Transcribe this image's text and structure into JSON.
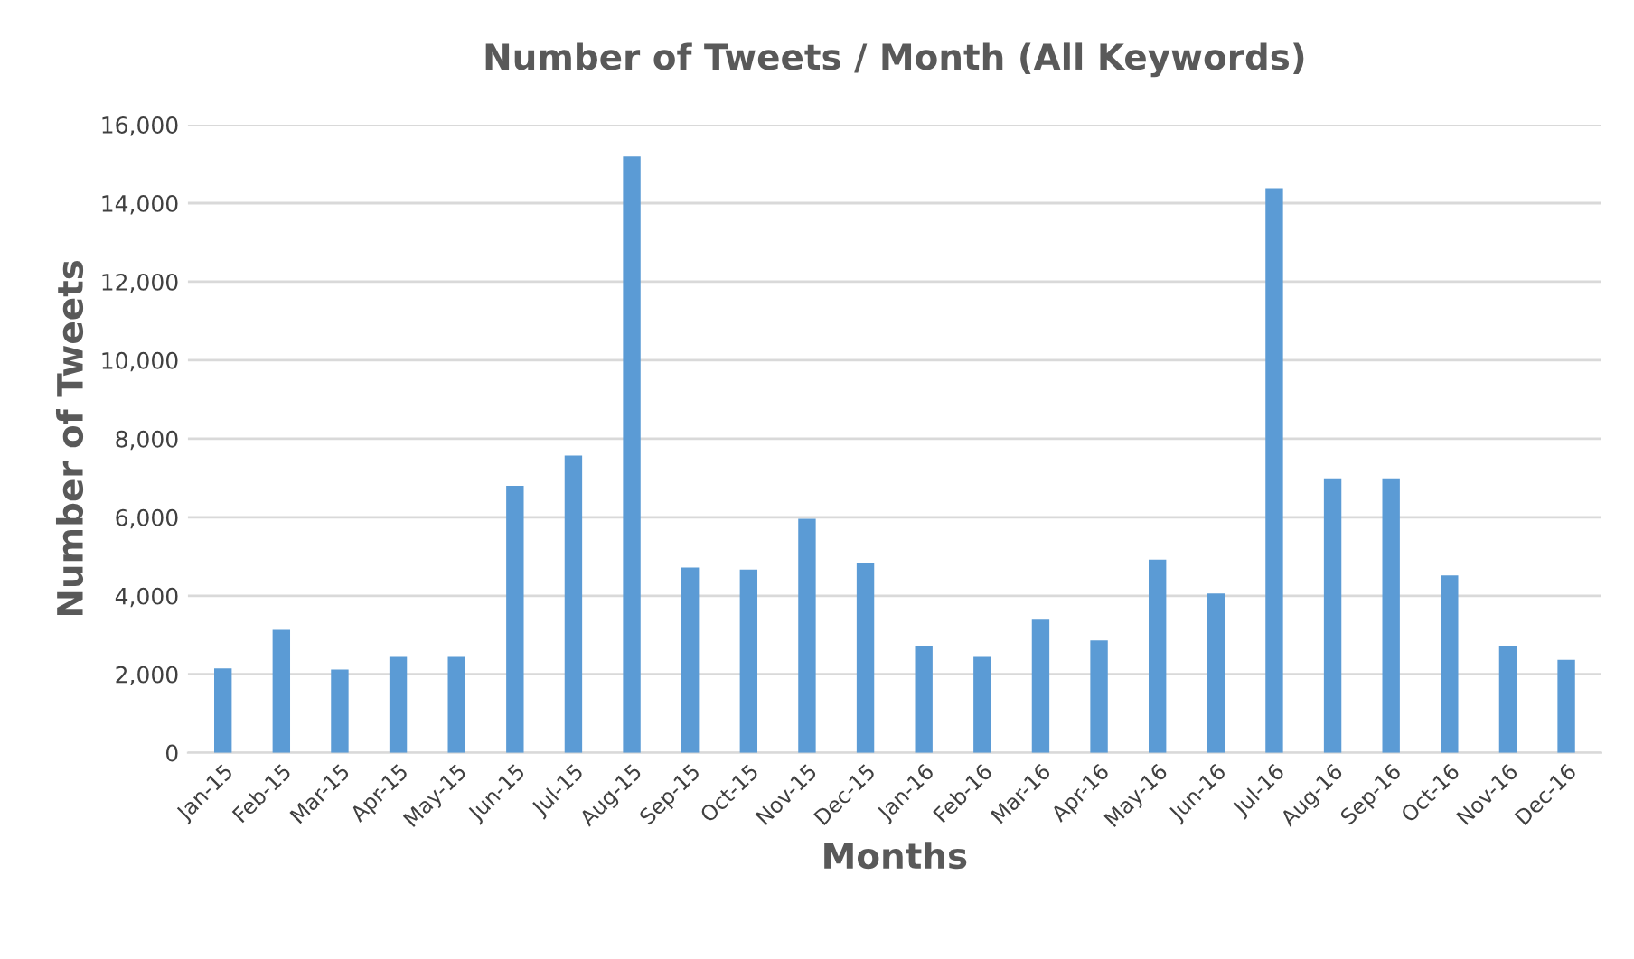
{
  "chart_data": {
    "type": "bar",
    "title": "Number of Tweets / Month (All Keywords)",
    "xlabel": "Months",
    "ylabel": "Number of Tweets",
    "categories": [
      "Jan-15",
      "Feb-15",
      "Mar-15",
      "Apr-15",
      "May-15",
      "Jun-15",
      "Jul-15",
      "Aug-15",
      "Sep-15",
      "Oct-15",
      "Nov-15",
      "Dec-15",
      "Jan-16",
      "Feb-16",
      "Mar-16",
      "Apr-16",
      "May-16",
      "Jun-16",
      "Jul-16",
      "Aug-16",
      "Sep-16",
      "Oct-16",
      "Nov-16",
      "Dec-16"
    ],
    "values": [
      2150,
      3130,
      2120,
      2440,
      2440,
      6800,
      7570,
      15190,
      4720,
      4670,
      5960,
      4820,
      2730,
      2440,
      3390,
      2860,
      4920,
      4060,
      14380,
      6990,
      6990,
      4520,
      2730,
      2370
    ],
    "color": "#5b9bd5",
    "ylim": [
      0,
      16000
    ],
    "yticks": [
      {
        "value": 0,
        "label": "0"
      },
      {
        "value": 2000,
        "label": "2,000"
      },
      {
        "value": 4000,
        "label": "4,000"
      },
      {
        "value": 6000,
        "label": "6,000"
      },
      {
        "value": 8000,
        "label": "8,000"
      },
      {
        "value": 10000,
        "label": "10,000"
      },
      {
        "value": 12000,
        "label": "12,000"
      },
      {
        "value": 14000,
        "label": "14,000"
      },
      {
        "value": 16000,
        "label": "16,000"
      }
    ],
    "grid": "y"
  }
}
